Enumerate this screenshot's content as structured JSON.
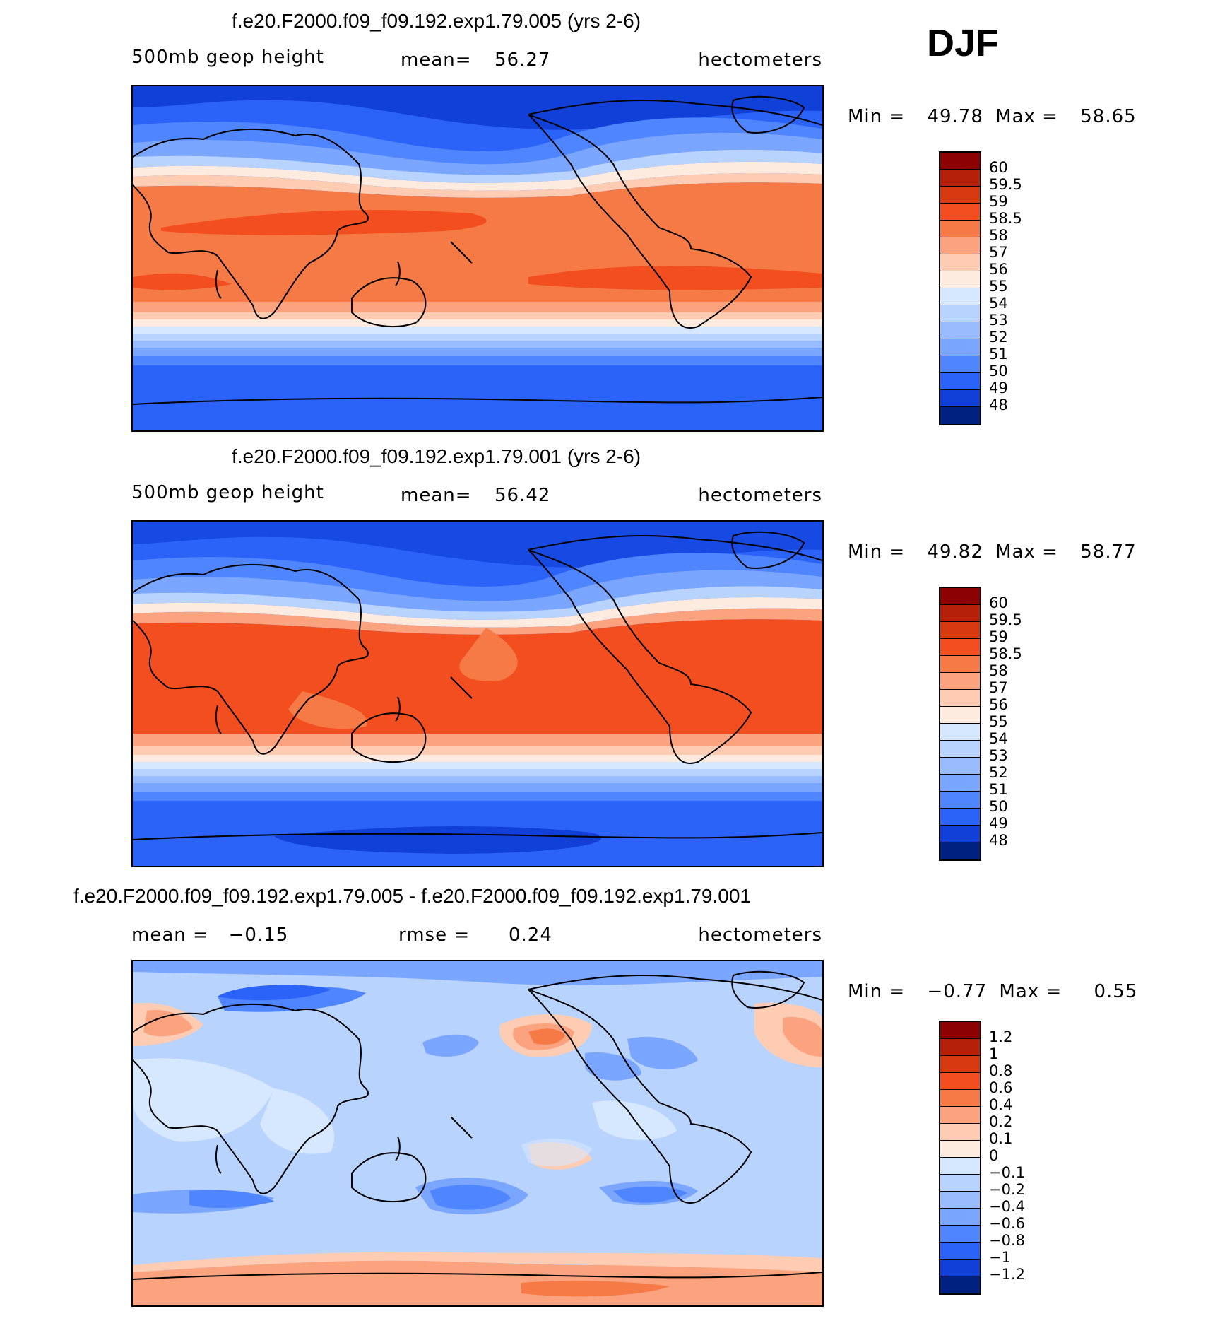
{
  "season": "DJF",
  "panels": [
    {
      "title": "f.e20.F2000.f09_f09.192.exp1.79.005 (yrs 2-6)",
      "left_label": "500mb geop height",
      "mid_label": "mean=",
      "mid_value": "56.27",
      "units": "hectometers",
      "min_label": "Min =",
      "min_value": "49.78",
      "max_label": "Max =",
      "max_value": "58.65",
      "colorbar_labels": [
        "60",
        "59.5",
        "59",
        "58.5",
        "58",
        "57",
        "56",
        "55",
        "54",
        "53",
        "52",
        "51",
        "50",
        "49",
        "48"
      ],
      "colorbar_colors": [
        "#8b0000",
        "#b5200a",
        "#d83a10",
        "#f24e1f",
        "#f57a45",
        "#fba27f",
        "#fdccb2",
        "#feebdf",
        "#d6e8ff",
        "#b9d3ff",
        "#98bcff",
        "#7aa6ff",
        "#4f86ff",
        "#2b62f7",
        "#1040d8",
        "#00207f"
      ]
    },
    {
      "title": "f.e20.F2000.f09_f09.192.exp1.79.001 (yrs 2-6)",
      "left_label": "500mb geop height",
      "mid_label": "mean=",
      "mid_value": "56.42",
      "units": "hectometers",
      "min_label": "Min =",
      "min_value": "49.82",
      "max_label": "Max =",
      "max_value": "58.77",
      "colorbar_labels": [
        "60",
        "59.5",
        "59",
        "58.5",
        "58",
        "57",
        "56",
        "55",
        "54",
        "53",
        "52",
        "51",
        "50",
        "49",
        "48"
      ],
      "colorbar_colors": [
        "#8b0000",
        "#b5200a",
        "#d83a10",
        "#f24e1f",
        "#f57a45",
        "#fba27f",
        "#fdccb2",
        "#feebdf",
        "#d6e8ff",
        "#b9d3ff",
        "#98bcff",
        "#7aa6ff",
        "#4f86ff",
        "#2b62f7",
        "#1040d8",
        "#00207f"
      ]
    },
    {
      "title": "f.e20.F2000.f09_f09.192.exp1.79.005 - f.e20.F2000.f09_f09.192.exp1.79.001",
      "left_label": "mean =   −0.15",
      "mid_label": "rmse =",
      "mid_value": "0.24",
      "units": "hectometers",
      "min_label": "Min =",
      "min_value": "−0.77",
      "max_label": "Max =",
      "max_value": "0.55",
      "colorbar_labels": [
        "1.2",
        "1",
        "0.8",
        "0.6",
        "0.4",
        "0.2",
        "0.1",
        "0",
        "−0.1",
        "−0.2",
        "−0.4",
        "−0.6",
        "−0.8",
        "−1",
        "−1.2"
      ],
      "colorbar_colors": [
        "#8b0000",
        "#b5200a",
        "#d83a10",
        "#f24e1f",
        "#f57a45",
        "#fba27f",
        "#fdccb2",
        "#feebdf",
        "#d6e8ff",
        "#b9d3ff",
        "#98bcff",
        "#7aa6ff",
        "#4f86ff",
        "#2b62f7",
        "#1040d8",
        "#00207f"
      ]
    }
  ]
}
